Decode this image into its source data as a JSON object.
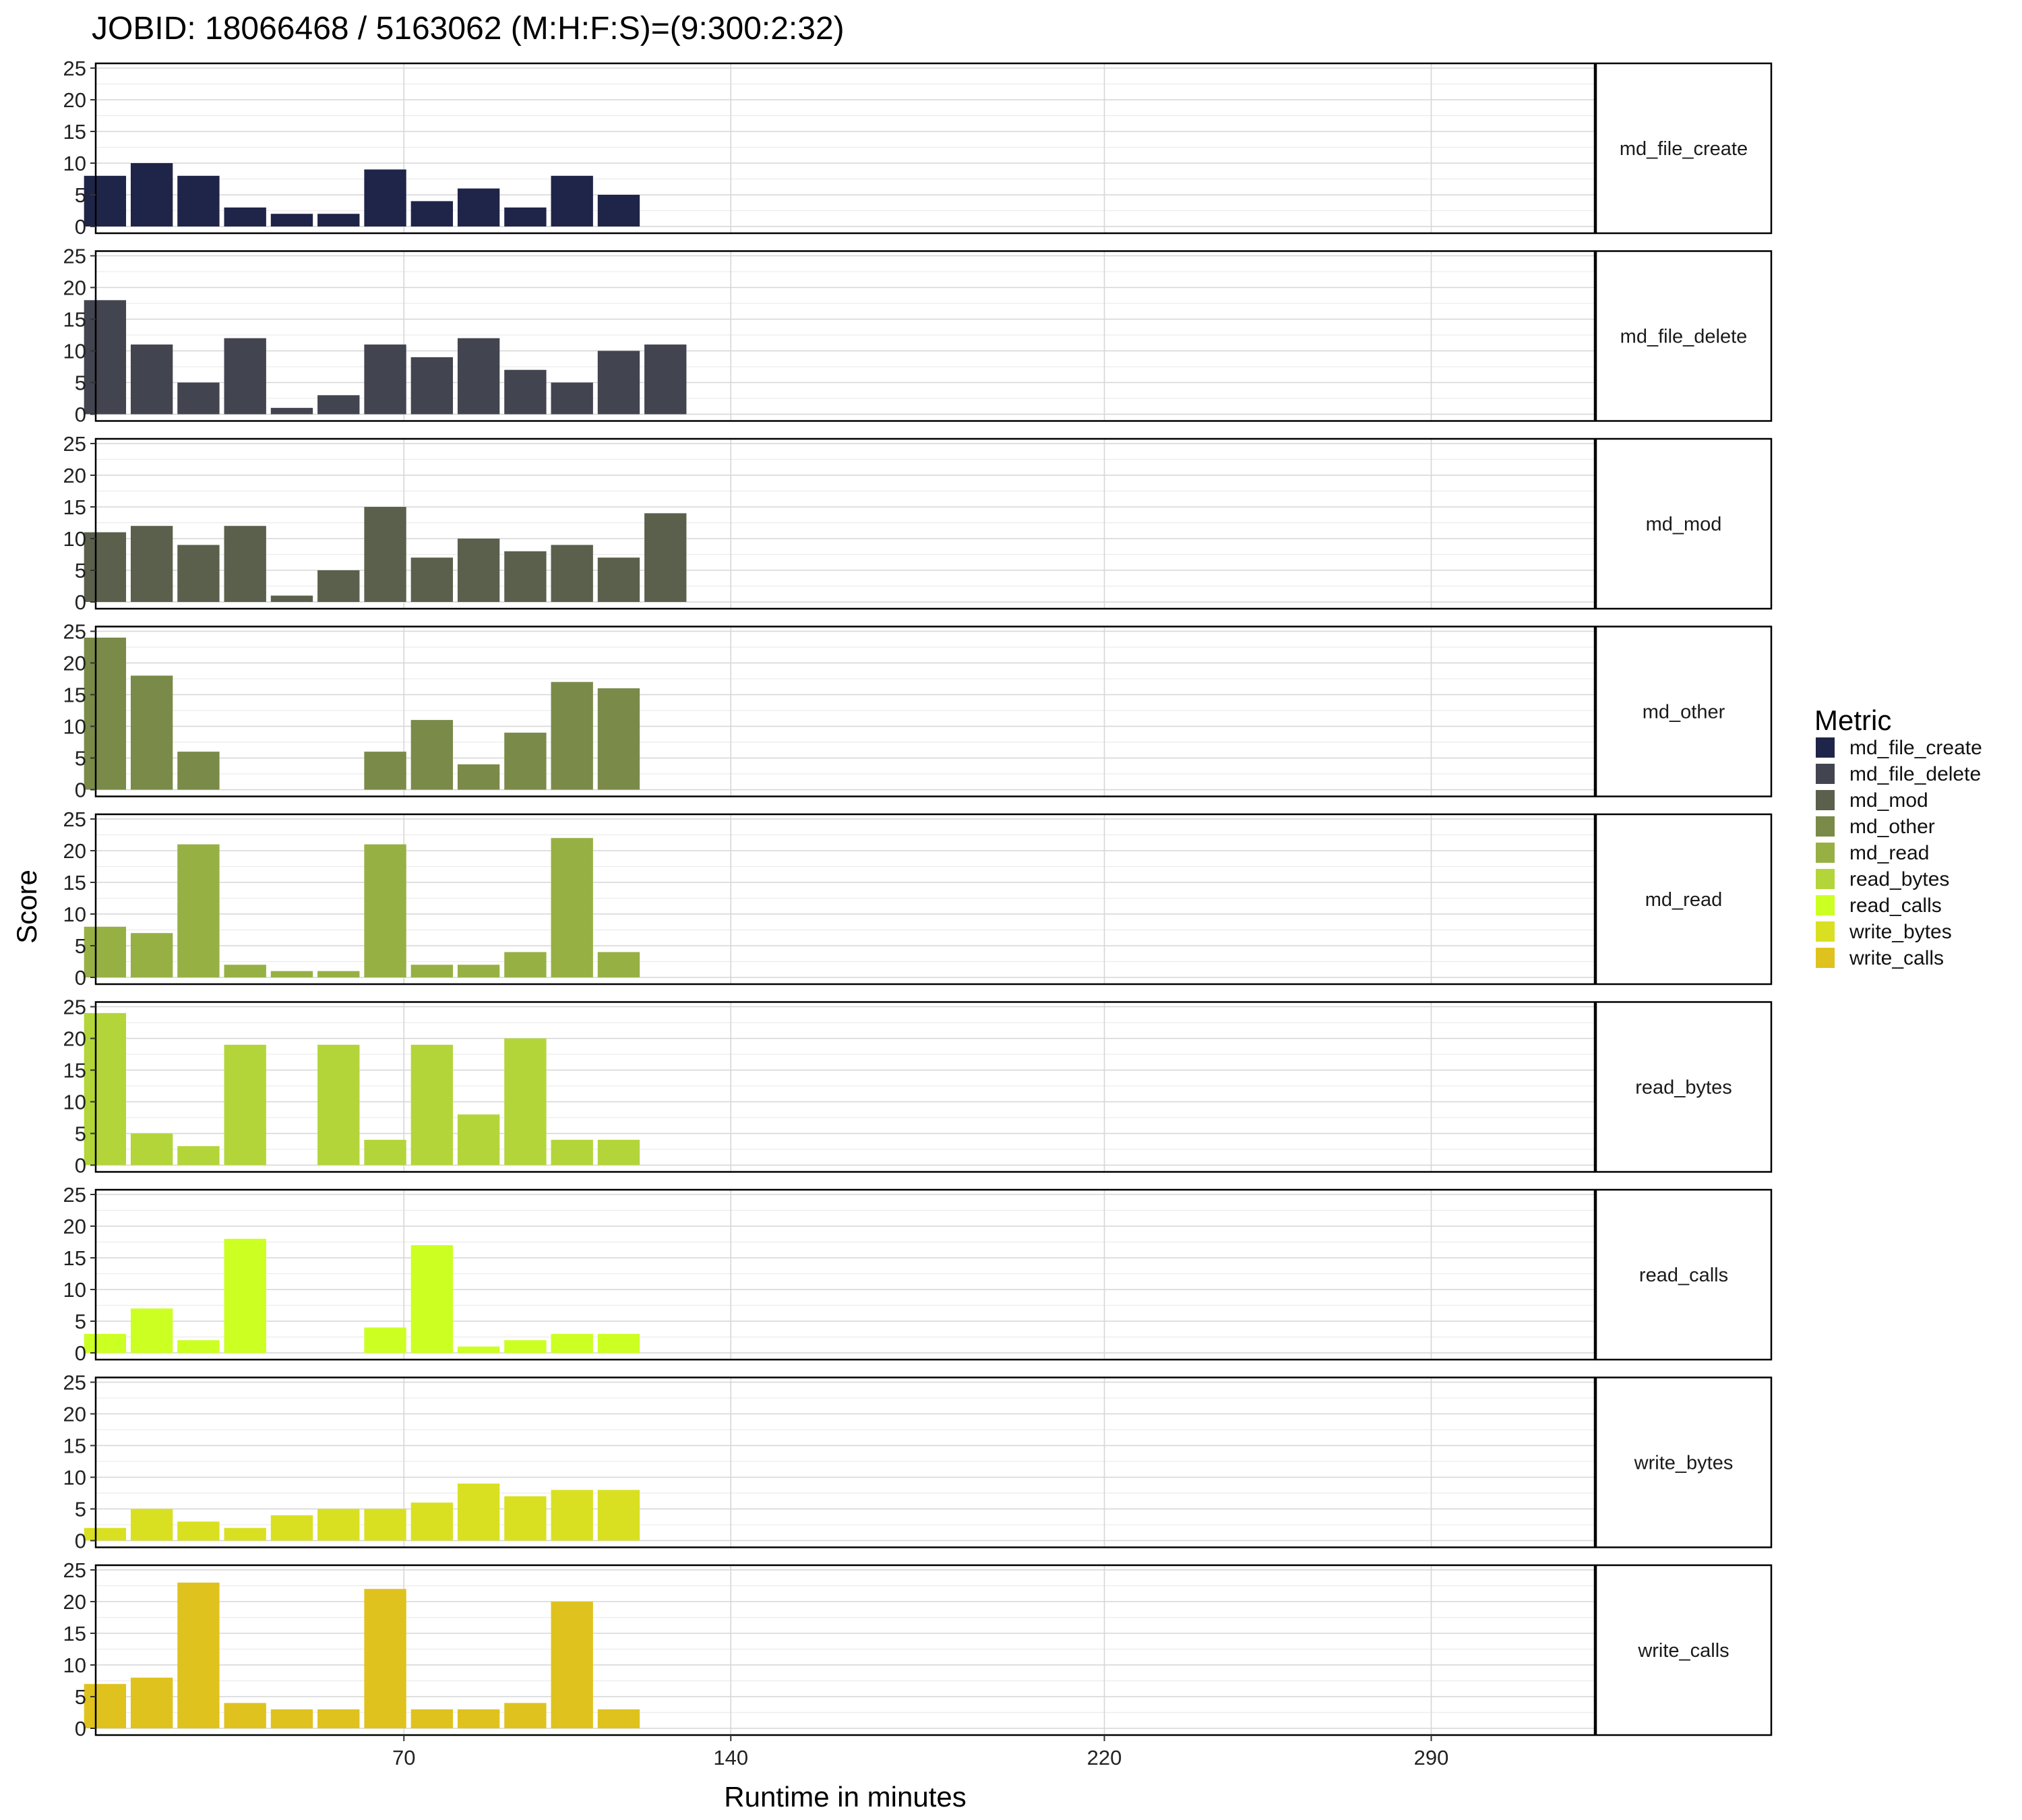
{
  "chart_data": {
    "type": "bar",
    "title": "JOBID: 18066468 / 5163062 (M:H:F:S)=(9:300:2:32)",
    "xlabel": "Runtime in minutes",
    "ylabel": "Score",
    "x_ticks": [
      70,
      140,
      220,
      290
    ],
    "xlim": [
      4,
      325
    ],
    "ylim": [
      0,
      25
    ],
    "y_ticks": [
      0,
      5,
      10,
      15,
      20,
      25
    ],
    "grid": true,
    "x": [
      6,
      16,
      26,
      36,
      46,
      56,
      66,
      76,
      86,
      96,
      106,
      116,
      126
    ],
    "legend": {
      "title": "Metric",
      "position": "right"
    },
    "series": [
      {
        "name": "md_file_create",
        "color": "#1F2548",
        "values": [
          8,
          10,
          8,
          3,
          2,
          2,
          9,
          4,
          6,
          3,
          8,
          5,
          null
        ]
      },
      {
        "name": "md_file_delete",
        "color": "#42444F",
        "values": [
          18,
          11,
          5,
          12,
          1,
          3,
          11,
          9,
          12,
          7,
          5,
          10,
          11
        ]
      },
      {
        "name": "md_mod",
        "color": "#5B604D",
        "values": [
          11,
          12,
          9,
          12,
          1,
          5,
          15,
          7,
          10,
          8,
          9,
          7,
          14
        ]
      },
      {
        "name": "md_other",
        "color": "#7A8A49",
        "values": [
          24,
          18,
          6,
          null,
          null,
          null,
          6,
          11,
          4,
          9,
          17,
          16,
          null
        ]
      },
      {
        "name": "md_read",
        "color": "#97B044",
        "values": [
          8,
          7,
          21,
          2,
          1,
          1,
          21,
          2,
          2,
          4,
          22,
          4,
          null
        ]
      },
      {
        "name": "read_bytes",
        "color": "#B3D53A",
        "values": [
          24,
          5,
          3,
          19,
          null,
          19,
          4,
          19,
          8,
          20,
          4,
          4,
          null
        ]
      },
      {
        "name": "read_calls",
        "color": "#CCFF22",
        "values": [
          3,
          7,
          2,
          18,
          null,
          null,
          4,
          17,
          1,
          2,
          3,
          3,
          null
        ]
      },
      {
        "name": "write_bytes",
        "color": "#D9E021",
        "values": [
          2,
          5,
          3,
          2,
          4,
          5,
          5,
          6,
          9,
          7,
          8,
          8,
          null
        ]
      },
      {
        "name": "write_calls",
        "color": "#DFC21E",
        "values": [
          7,
          8,
          23,
          4,
          3,
          3,
          22,
          3,
          3,
          4,
          20,
          3,
          null
        ]
      }
    ]
  }
}
